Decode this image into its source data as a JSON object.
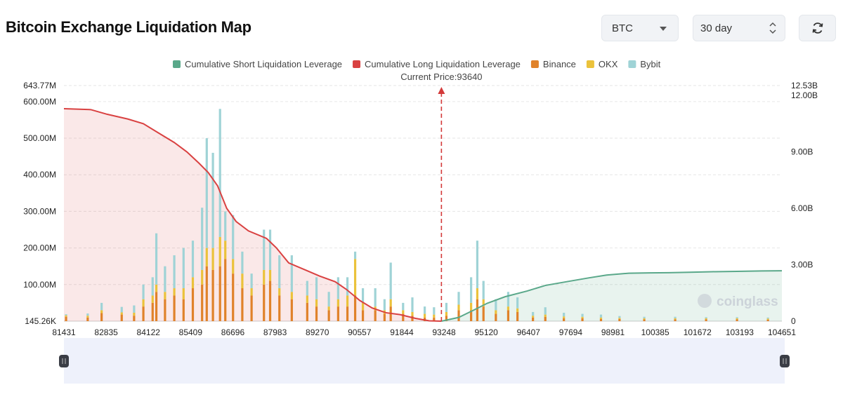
{
  "header": {
    "title": "Bitcoin Exchange Liquidation Map",
    "coin_select": {
      "value": "BTC"
    },
    "range_select": {
      "value": "30 day"
    }
  },
  "colors": {
    "short_cum": "#5aa88a",
    "long_cum": "#d94141",
    "binance": "#e0822a",
    "okx": "#ebc23b",
    "bybit": "#9fd3d6"
  },
  "chart_data": {
    "type": "bar",
    "legend": [
      {
        "key": "short_cum",
        "label": "Cumulative Short Liquidation Leverage",
        "color": "#5aa88a"
      },
      {
        "key": "long_cum",
        "label": "Cumulative Long Liquidation Leverage",
        "color": "#d94141"
      },
      {
        "key": "binance",
        "label": "Binance",
        "color": "#e0822a"
      },
      {
        "key": "okx",
        "label": "OKX",
        "color": "#ebc23b"
      },
      {
        "key": "bybit",
        "label": "Bybit",
        "color": "#9fd3d6"
      }
    ],
    "legend_position": "top-center",
    "current_price_label": "Current Price:93640",
    "current_price": 93640,
    "x_range": [
      81431,
      104651
    ],
    "x_tick_labels": [
      "81431",
      "82835",
      "84122",
      "85409",
      "86696",
      "87983",
      "89270",
      "90557",
      "91844",
      "93248",
      "95120",
      "96407",
      "97694",
      "98981",
      "100385",
      "101672",
      "103193",
      "104651"
    ],
    "left_axis": {
      "min": 0.14526,
      "max": 643.77,
      "unit": "M",
      "tick_labels": [
        {
          "v": 643.77,
          "label": "643.77M"
        },
        {
          "v": 600,
          "label": "600.00M"
        },
        {
          "v": 500,
          "label": "500.00M"
        },
        {
          "v": 400,
          "label": "400.00M"
        },
        {
          "v": 300,
          "label": "300.00M"
        },
        {
          "v": 200,
          "label": "200.00M"
        },
        {
          "v": 100,
          "label": "100.00M"
        },
        {
          "v": 0,
          "label": "145.26K"
        }
      ]
    },
    "right_axis": {
      "min": 0,
      "max": 12.53,
      "unit": "B",
      "tick_labels": [
        {
          "v": 12.53,
          "label": "12.53B"
        },
        {
          "v": 12.0,
          "label": "12.00B"
        },
        {
          "v": 9.0,
          "label": "9.00B"
        },
        {
          "v": 6.0,
          "label": "6.00B"
        },
        {
          "v": 3.0,
          "label": "3.00B"
        },
        {
          "v": 0,
          "label": "0"
        }
      ]
    },
    "grid": true,
    "watermark": "coinglass",
    "long_cumulative_B": [
      [
        81431,
        11.3
      ],
      [
        82300,
        11.25
      ],
      [
        82835,
        11.0
      ],
      [
        83500,
        10.75
      ],
      [
        84000,
        10.5
      ],
      [
        84500,
        10.0
      ],
      [
        85000,
        9.5
      ],
      [
        85409,
        9.0
      ],
      [
        85800,
        8.4
      ],
      [
        86100,
        7.9
      ],
      [
        86400,
        7.2
      ],
      [
        86696,
        6.0
      ],
      [
        87000,
        5.3
      ],
      [
        87400,
        4.8
      ],
      [
        87983,
        4.4
      ],
      [
        88300,
        3.9
      ],
      [
        88700,
        3.1
      ],
      [
        89270,
        2.7
      ],
      [
        89700,
        2.4
      ],
      [
        90200,
        2.1
      ],
      [
        90557,
        1.7
      ],
      [
        91000,
        1.1
      ],
      [
        91400,
        0.7
      ],
      [
        91844,
        0.45
      ],
      [
        92300,
        0.35
      ],
      [
        92800,
        0.15
      ],
      [
        93248,
        0.02
      ],
      [
        93640,
        0.0
      ]
    ],
    "short_cumulative_B": [
      [
        93640,
        0.0
      ],
      [
        94200,
        0.2
      ],
      [
        94700,
        0.6
      ],
      [
        95120,
        0.95
      ],
      [
        95700,
        1.3
      ],
      [
        96407,
        1.6
      ],
      [
        97000,
        1.9
      ],
      [
        97694,
        2.1
      ],
      [
        98400,
        2.3
      ],
      [
        98981,
        2.45
      ],
      [
        99700,
        2.55
      ],
      [
        100385,
        2.57
      ],
      [
        101000,
        2.58
      ],
      [
        101672,
        2.6
      ],
      [
        102400,
        2.63
      ],
      [
        103193,
        2.65
      ],
      [
        104000,
        2.67
      ],
      [
        104651,
        2.68
      ]
    ],
    "bars_M": [
      {
        "x": 81500,
        "binance": 12,
        "okx": 4,
        "bybit": 3
      },
      {
        "x": 82200,
        "binance": 10,
        "okx": 5,
        "bybit": 6
      },
      {
        "x": 82650,
        "binance": 22,
        "okx": 8,
        "bybit": 20
      },
      {
        "x": 83300,
        "binance": 18,
        "okx": 6,
        "bybit": 15
      },
      {
        "x": 83700,
        "binance": 15,
        "okx": 8,
        "bybit": 20
      },
      {
        "x": 84000,
        "binance": 40,
        "okx": 20,
        "bybit": 40
      },
      {
        "x": 84300,
        "binance": 50,
        "okx": 20,
        "bybit": 50
      },
      {
        "x": 84420,
        "binance": 80,
        "okx": 20,
        "bybit": 140
      },
      {
        "x": 84700,
        "binance": 60,
        "okx": 20,
        "bybit": 70
      },
      {
        "x": 85000,
        "binance": 70,
        "okx": 20,
        "bybit": 90
      },
      {
        "x": 85300,
        "binance": 60,
        "okx": 30,
        "bybit": 110
      },
      {
        "x": 85600,
        "binance": 90,
        "okx": 30,
        "bybit": 100
      },
      {
        "x": 85900,
        "binance": 100,
        "okx": 40,
        "bybit": 170
      },
      {
        "x": 86050,
        "binance": 150,
        "okx": 50,
        "bybit": 300
      },
      {
        "x": 86250,
        "binance": 140,
        "okx": 60,
        "bybit": 260
      },
      {
        "x": 86480,
        "binance": 150,
        "okx": 80,
        "bybit": 350
      },
      {
        "x": 86650,
        "binance": 170,
        "okx": 50,
        "bybit": 80
      },
      {
        "x": 86900,
        "binance": 130,
        "okx": 40,
        "bybit": 120
      },
      {
        "x": 87200,
        "binance": 90,
        "okx": 40,
        "bybit": 60
      },
      {
        "x": 87500,
        "binance": 70,
        "okx": 20,
        "bybit": 40
      },
      {
        "x": 87900,
        "binance": 100,
        "okx": 40,
        "bybit": 110
      },
      {
        "x": 88100,
        "binance": 110,
        "okx": 30,
        "bybit": 110
      },
      {
        "x": 88400,
        "binance": 70,
        "okx": 20,
        "bybit": 90
      },
      {
        "x": 88800,
        "binance": 60,
        "okx": 20,
        "bybit": 100
      },
      {
        "x": 89300,
        "binance": 50,
        "okx": 20,
        "bybit": 40
      },
      {
        "x": 89600,
        "binance": 40,
        "okx": 20,
        "bybit": 60
      },
      {
        "x": 90000,
        "binance": 30,
        "okx": 10,
        "bybit": 40
      },
      {
        "x": 90300,
        "binance": 40,
        "okx": 20,
        "bybit": 60
      },
      {
        "x": 90600,
        "binance": 40,
        "okx": 30,
        "bybit": 50
      },
      {
        "x": 90850,
        "binance": 70,
        "okx": 100,
        "bybit": 20
      },
      {
        "x": 91100,
        "binance": 30,
        "okx": 20,
        "bybit": 40
      },
      {
        "x": 91500,
        "binance": 30,
        "okx": 10,
        "bybit": 50
      },
      {
        "x": 91800,
        "binance": 20,
        "okx": 10,
        "bybit": 30
      },
      {
        "x": 92000,
        "binance": 40,
        "okx": 20,
        "bybit": 100
      },
      {
        "x": 92400,
        "binance": 20,
        "okx": 10,
        "bybit": 20
      },
      {
        "x": 92700,
        "binance": 15,
        "okx": 10,
        "bybit": 40
      },
      {
        "x": 93100,
        "binance": 10,
        "okx": 10,
        "bybit": 20
      },
      {
        "x": 93400,
        "binance": 10,
        "okx": 8,
        "bybit": 20
      },
      {
        "x": 93800,
        "binance": 15,
        "okx": 10,
        "bybit": 25
      },
      {
        "x": 94200,
        "binance": 30,
        "okx": 15,
        "bybit": 35
      },
      {
        "x": 94600,
        "binance": 30,
        "okx": 20,
        "bybit": 70
      },
      {
        "x": 94800,
        "binance": 60,
        "okx": 30,
        "bybit": 130
      },
      {
        "x": 95000,
        "binance": 40,
        "okx": 20,
        "bybit": 50
      },
      {
        "x": 95400,
        "binance": 20,
        "okx": 10,
        "bybit": 30
      },
      {
        "x": 95800,
        "binance": 30,
        "okx": 10,
        "bybit": 40
      },
      {
        "x": 96100,
        "binance": 25,
        "okx": 10,
        "bybit": 30
      },
      {
        "x": 96600,
        "binance": 10,
        "okx": 5,
        "bybit": 10
      },
      {
        "x": 97000,
        "binance": 12,
        "okx": 6,
        "bybit": 20
      },
      {
        "x": 97600,
        "binance": 8,
        "okx": 5,
        "bybit": 10
      },
      {
        "x": 98200,
        "binance": 8,
        "okx": 4,
        "bybit": 8
      },
      {
        "x": 98800,
        "binance": 6,
        "okx": 4,
        "bybit": 8
      },
      {
        "x": 99400,
        "binance": 6,
        "okx": 3,
        "bybit": 5
      },
      {
        "x": 100200,
        "binance": 5,
        "okx": 3,
        "bybit": 4
      },
      {
        "x": 101200,
        "binance": 5,
        "okx": 3,
        "bybit": 4
      },
      {
        "x": 102200,
        "binance": 5,
        "okx": 3,
        "bybit": 3
      },
      {
        "x": 103200,
        "binance": 5,
        "okx": 3,
        "bybit": 3
      },
      {
        "x": 104200,
        "binance": 4,
        "okx": 3,
        "bybit": 3
      }
    ]
  }
}
